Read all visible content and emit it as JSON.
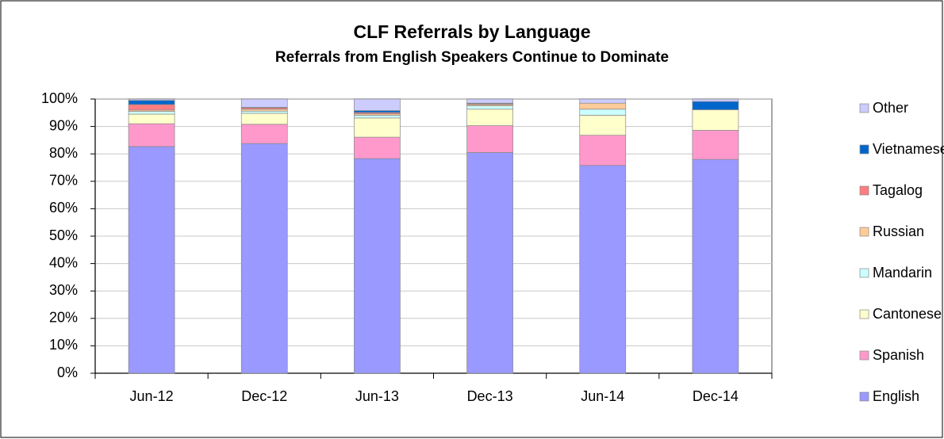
{
  "chart_data": {
    "type": "stacked_bar",
    "title": "CLF Referrals by Language",
    "subtitle": "Referrals from English Speakers Continue to Dominate",
    "categories": [
      "Jun-12",
      "Dec-12",
      "Jun-13",
      "Dec-13",
      "Jun-14",
      "Dec-14"
    ],
    "series": [
      {
        "name": "English",
        "color": "#9999ff",
        "values": [
          82.7,
          83.8,
          78.3,
          80.5,
          75.8,
          78
        ]
      },
      {
        "name": "Spanish",
        "color": "#ff99cc",
        "values": [
          8.3,
          7,
          7.8,
          9.8,
          11,
          10.6
        ]
      },
      {
        "name": "Cantonese",
        "color": "#ffffcc",
        "values": [
          3.5,
          4,
          7,
          6,
          7.3,
          7.5
        ]
      },
      {
        "name": "Mandarin",
        "color": "#ccffff",
        "values": [
          1,
          0.8,
          1,
          1.2,
          2.2,
          0
        ]
      },
      {
        "name": "Russian",
        "color": "#ffcc99",
        "values": [
          0.5,
          0.7,
          0.5,
          0.5,
          2.2,
          0
        ]
      },
      {
        "name": "Tagalog",
        "color": "#ff7c80",
        "values": [
          2,
          0.5,
          0.5,
          0.3,
          0,
          0
        ]
      },
      {
        "name": "Vietnamese",
        "color": "#0066cc",
        "values": [
          1.5,
          0.2,
          0.7,
          0.2,
          0,
          3
        ]
      },
      {
        "name": "Other",
        "color": "#ccccff",
        "values": [
          0.5,
          3,
          4.2,
          1.5,
          1.5,
          0.9
        ]
      }
    ],
    "ylim": [
      0,
      100
    ],
    "yticks": [
      {
        "value": 0,
        "label": "0%"
      },
      {
        "value": 10,
        "label": "10%"
      },
      {
        "value": 20,
        "label": "20%"
      },
      {
        "value": 30,
        "label": "30%"
      },
      {
        "value": 40,
        "label": "40%"
      },
      {
        "value": 50,
        "label": "50%"
      },
      {
        "value": 60,
        "label": "60%"
      },
      {
        "value": 70,
        "label": "70%"
      },
      {
        "value": 80,
        "label": "80%"
      },
      {
        "value": 90,
        "label": "90%"
      },
      {
        "value": 100,
        "label": "100%"
      }
    ],
    "grid": true,
    "legend": "right"
  }
}
